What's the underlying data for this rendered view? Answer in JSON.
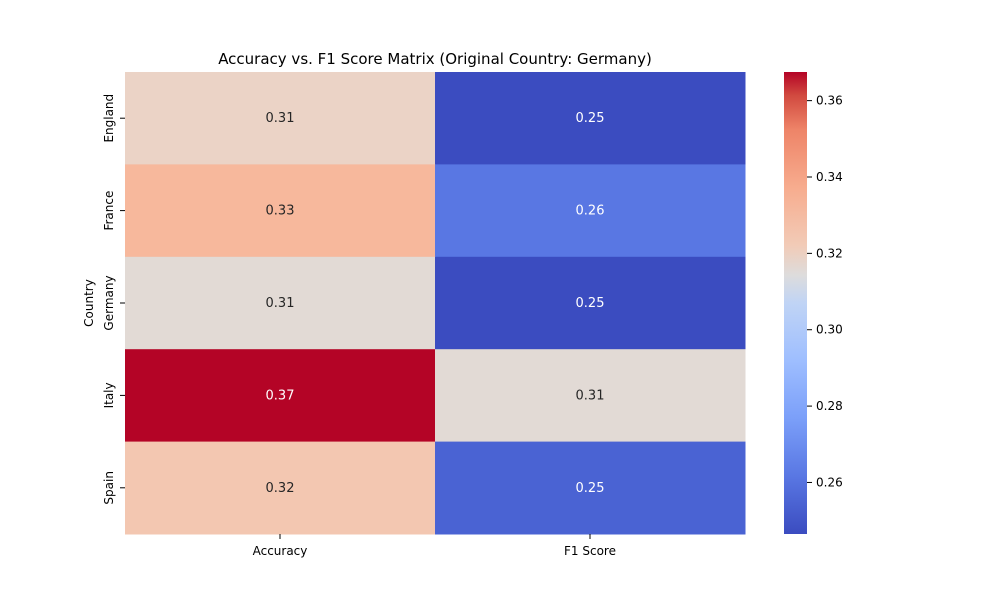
{
  "chart_data": {
    "type": "heatmap",
    "title": "Accuracy vs. F1 Score Matrix (Original Country: Germany)",
    "xlabel": "",
    "ylabel": "Country",
    "x_categories": [
      "Accuracy",
      "F1 Score"
    ],
    "y_categories": [
      "England",
      "France",
      "Germany",
      "Italy",
      "Spain"
    ],
    "values": [
      [
        0.31,
        0.25
      ],
      [
        0.33,
        0.26
      ],
      [
        0.31,
        0.25
      ],
      [
        0.37,
        0.31
      ],
      [
        0.32,
        0.25
      ]
    ],
    "cell_labels": [
      [
        "0.31",
        "0.25"
      ],
      [
        "0.33",
        "0.26"
      ],
      [
        "0.31",
        "0.25"
      ],
      [
        "0.37",
        "0.31"
      ],
      [
        "0.32",
        "0.25"
      ]
    ],
    "cell_colors": [
      [
        "#ebd3c6",
        "#3b4cc0"
      ],
      [
        "#f7b89c",
        "#5977e3"
      ],
      [
        "#e2dad5",
        "#3b4cc0"
      ],
      [
        "#b40426",
        "#e2dad5"
      ],
      [
        "#f3c7b1",
        "#4a63d3"
      ]
    ],
    "colormap": "coolwarm",
    "colorbar": {
      "range": [
        0.2465,
        0.3675
      ],
      "ticks": [
        0.26,
        0.28,
        0.3,
        0.32,
        0.34,
        0.36
      ],
      "tick_labels": [
        "0.26",
        "0.28",
        "0.30",
        "0.32",
        "0.34",
        "0.36"
      ]
    },
    "grid": false,
    "legend": "colorbar-right"
  }
}
